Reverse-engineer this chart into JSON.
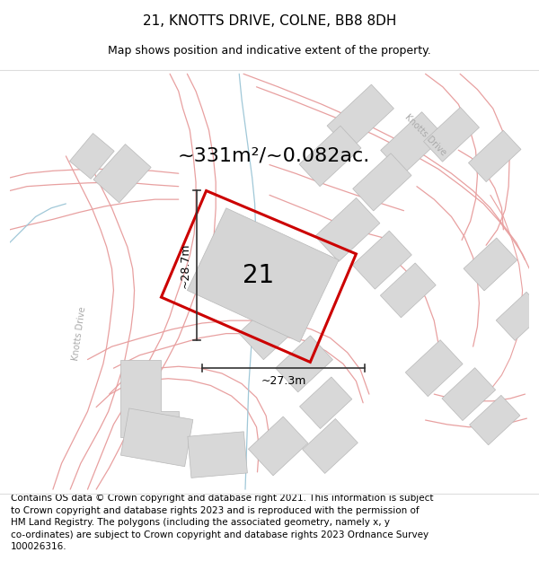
{
  "title": "21, KNOTTS DRIVE, COLNE, BB8 8DH",
  "subtitle": "Map shows position and indicative extent of the property.",
  "footer": "Contains OS data © Crown copyright and database right 2021. This information is subject\nto Crown copyright and database rights 2023 and is reproduced with the permission of\nHM Land Registry. The polygons (including the associated geometry, namely x, y\nco-ordinates) are subject to Crown copyright and database rights 2023 Ordnance Survey\n100026316.",
  "area_text": "~331m²/~0.082ac.",
  "dim_h": "~28.7m",
  "dim_w": "~27.3m",
  "label": "21",
  "bg_color": "#f7f6f3",
  "road_line_color": "#f0a0a0",
  "road_line_lw": 0.8,
  "blue_line_color": "#a0c8d8",
  "building_fill": "#d8d8d8",
  "building_edge": "#b8b8b8",
  "plot_color": "#cc0000",
  "plot_lw": 2.2,
  "dim_line_color": "#333333",
  "street_label_color": "#aaaaaa",
  "title_fontsize": 11,
  "subtitle_fontsize": 9,
  "footer_fontsize": 7.5,
  "area_fontsize": 16,
  "dim_fontsize": 9,
  "label_fontsize": 20
}
